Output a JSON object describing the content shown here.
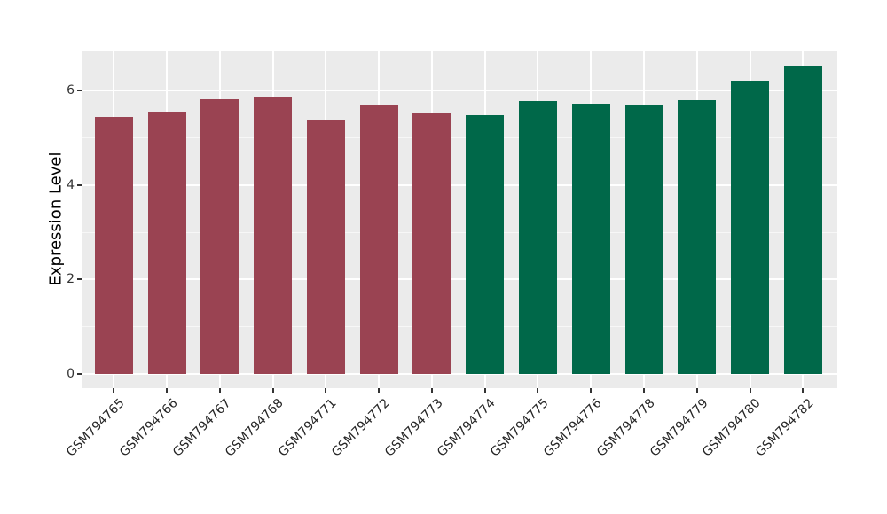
{
  "chart_data": {
    "type": "bar",
    "title": "",
    "xlabel": "",
    "ylabel": "Expression Level",
    "categories": [
      "GSM794765",
      "GSM794766",
      "GSM794767",
      "GSM794768",
      "GSM794771",
      "GSM794772",
      "GSM794773",
      "GSM794774",
      "GSM794775",
      "GSM794776",
      "GSM794778",
      "GSM794779",
      "GSM794780",
      "GSM794782"
    ],
    "values": [
      5.44,
      5.55,
      5.82,
      5.88,
      5.38,
      5.7,
      5.53,
      5.47,
      5.77,
      5.73,
      5.69,
      5.79,
      6.21,
      6.53
    ],
    "bar_colors": [
      "#9A4352",
      "#9A4352",
      "#9A4352",
      "#9A4352",
      "#9A4352",
      "#9A4352",
      "#9A4352",
      "#006849",
      "#006849",
      "#006849",
      "#006849",
      "#006849",
      "#006849",
      "#006849"
    ],
    "group_palette": {
      "left_group": "#9A4352",
      "right_group": "#006849"
    },
    "yticks": [
      0,
      2,
      4,
      6
    ],
    "minor_yticks": [
      1,
      3,
      5
    ],
    "ylim": [
      0,
      6.85
    ],
    "legend": "none",
    "grid": "on",
    "panel_bg": "#EBEBEB",
    "grid_color": "#FFFFFF",
    "tick_color": "#333333",
    "x_label_rotation_deg": 45
  }
}
